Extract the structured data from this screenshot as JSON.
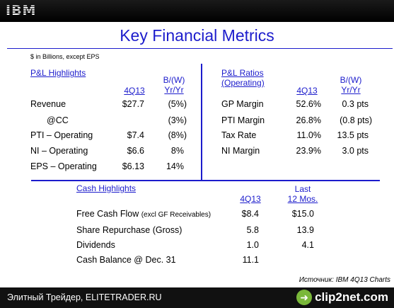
{
  "header": {
    "logo": "IBM"
  },
  "slide": {
    "title": "Key Financial Metrics",
    "units": "$ in Billions, except EPS"
  },
  "pl": {
    "section": "P&L Highlights",
    "col_period": "4Q13",
    "col_change_1": "B/(W)",
    "col_change_2": "Yr/Yr",
    "rows": [
      {
        "label": "Revenue",
        "value": "$27.7",
        "change": "(5%)"
      },
      {
        "label": "@CC",
        "value": "",
        "change": "(3%)"
      },
      {
        "label": "PTI – Operating",
        "value": "$7.4",
        "change": "(8%)"
      },
      {
        "label": "NI – Operating",
        "value": "$6.6",
        "change": "8%"
      },
      {
        "label": "EPS – Operating",
        "value": "$6.13",
        "change": "14%"
      }
    ]
  },
  "ratios": {
    "section_1": "P&L Ratios",
    "section_2": "(Operating)",
    "col_period": "4Q13",
    "col_change_1": "B/(W)",
    "col_change_2": "Yr/Yr",
    "rows": [
      {
        "label": "GP Margin",
        "value": "52.6%",
        "change": "0.3 pts"
      },
      {
        "label": "PTI Margin",
        "value": "26.8%",
        "change": "(0.8 pts)"
      },
      {
        "label": "Tax Rate",
        "value": "11.0%",
        "change": "13.5 pts"
      },
      {
        "label": "NI Margin",
        "value": "23.9%",
        "change": "3.0 pts"
      }
    ]
  },
  "cash": {
    "section": "Cash Highlights",
    "col_period": "4Q13",
    "col_last_1": "Last",
    "col_last_2": "12 Mos.",
    "rows": [
      {
        "label": "Free Cash Flow",
        "note": "(excl GF Receivables)",
        "value": "$8.4",
        "last": "$15.0"
      },
      {
        "label": "Share Repurchase (Gross)",
        "note": "",
        "value": "5.8",
        "last": "13.9"
      },
      {
        "label": "Dividends",
        "note": "",
        "value": "1.0",
        "last": "4.1"
      },
      {
        "label": "Cash Balance @ Dec. 31",
        "note": "",
        "value": "11.1",
        "last": ""
      }
    ]
  },
  "source": "Источник: IBM 4Q13 Charts",
  "footer": {
    "text": "Элитный Трейдер, ELITETRADER.RU",
    "brand": "clip2net.com",
    "brand_icon": "arrow-icon"
  }
}
